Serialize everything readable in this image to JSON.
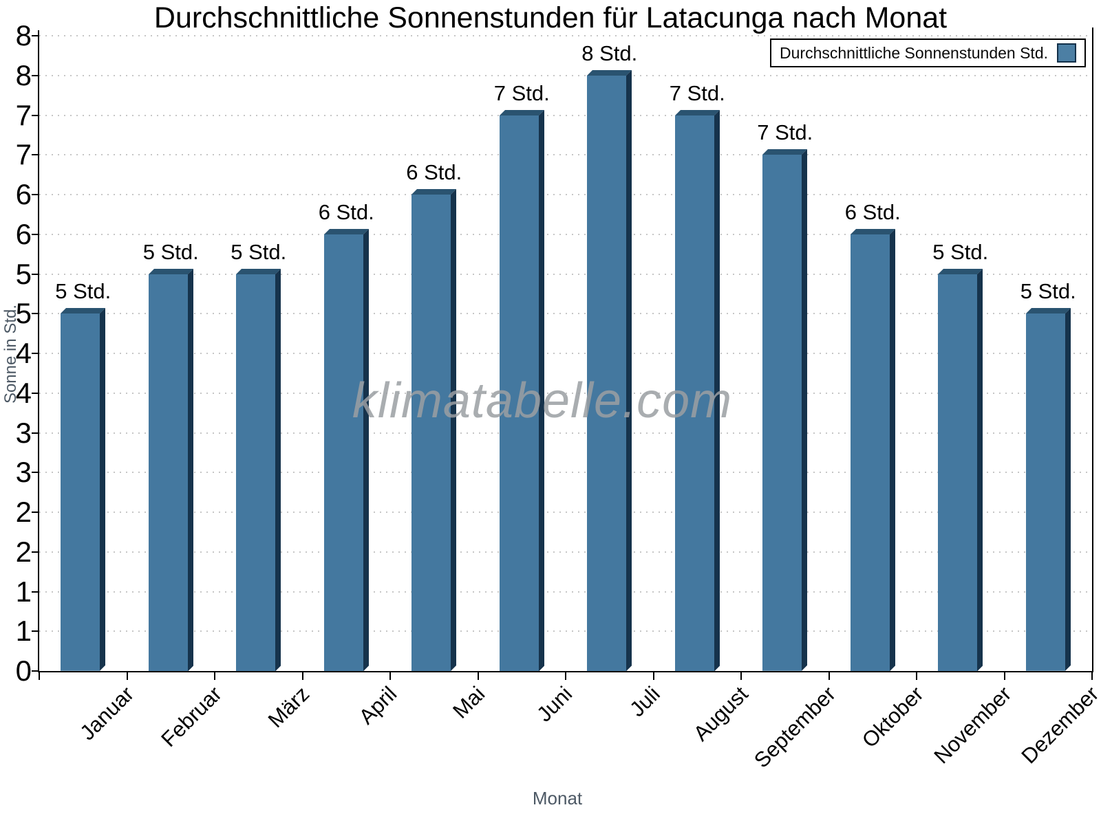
{
  "chart_data": {
    "type": "bar",
    "title": "Durchschnittliche Sonnenstunden für Latacunga nach Monat",
    "xlabel": "Monat",
    "ylabel": "Sonne in Std.",
    "categories": [
      "Januar",
      "Februar",
      "März",
      "April",
      "Mai",
      "Juni",
      "Juli",
      "August",
      "September",
      "Oktober",
      "November",
      "Dezember"
    ],
    "values": [
      4.5,
      5,
      5,
      5.5,
      6,
      7,
      7.5,
      7,
      6.5,
      5.5,
      5,
      4.5
    ],
    "bar_labels": [
      "5 Std.",
      "5 Std.",
      "5 Std.",
      "6 Std.",
      "6 Std.",
      "7 Std.",
      "8 Std.",
      "7 Std.",
      "7 Std.",
      "6 Std.",
      "5 Std.",
      "5 Std."
    ],
    "ylim": [
      0,
      8
    ],
    "ytick_step": 0.5,
    "ytick_labels_bottom_to_top": [
      "0",
      "1",
      "1",
      "2",
      "2",
      "3",
      "3",
      "4",
      "4",
      "5",
      "5",
      "6",
      "6",
      "7",
      "7",
      "8",
      "8"
    ],
    "grid": "horizontal-dotted",
    "legend_position": "top-right",
    "legend_label": "Durchschnittliche Sonnenstunden Std.",
    "watermark": "klimatabelle.com",
    "colors": {
      "bar_front": "#44789f",
      "bar_top": "#2a5370",
      "bar_side": "#16334c",
      "legend_swatch": "#4c7fa4",
      "grid": "#c6c6c6",
      "axis": "#000000",
      "axis_title": "#4d5965",
      "watermark": "#9b9fa3"
    }
  }
}
